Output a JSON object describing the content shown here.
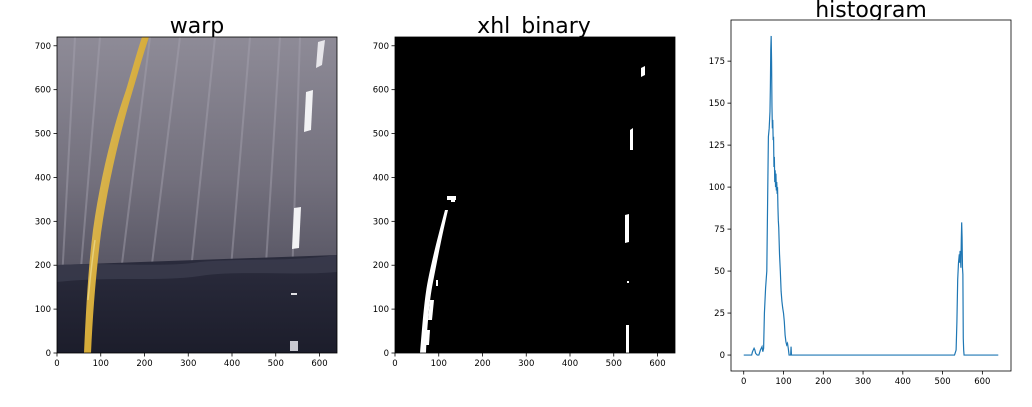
{
  "panels": [
    {
      "title": "warp",
      "image": "perspective-warped road photo: yellow left lane line curving up-right, white dashed right lane line, grey asphalt with dark shadow in lower part",
      "x_ticks": [
        "0",
        "100",
        "200",
        "300",
        "400",
        "500",
        "600"
      ],
      "y_ticks": [
        "0",
        "100",
        "200",
        "300",
        "400",
        "500",
        "600",
        "700"
      ],
      "xlim": [
        0,
        640
      ],
      "ylim": [
        720,
        0
      ]
    },
    {
      "title": "xhl_binary",
      "image": "binary lane mask: white lane pixels on black background",
      "x_ticks": [
        "0",
        "100",
        "200",
        "300",
        "400",
        "500",
        "600"
      ],
      "y_ticks": [
        "0",
        "100",
        "200",
        "300",
        "400",
        "500",
        "600",
        "700"
      ],
      "xlim": [
        0,
        640
      ],
      "ylim": [
        720,
        0
      ]
    }
  ],
  "chart_data": {
    "type": "line",
    "title": "histogram",
    "xlabel": "",
    "ylabel": "",
    "xlim": [
      -32,
      672
    ],
    "ylim": [
      -9.5,
      199.5
    ],
    "x_ticks": [
      "0",
      "100",
      "200",
      "300",
      "400",
      "500",
      "600"
    ],
    "y_ticks": [
      "0",
      "25",
      "50",
      "75",
      "100",
      "125",
      "150",
      "175"
    ],
    "color": "#1f77b4",
    "series": [
      {
        "x": [
          0,
          10,
          20,
          22,
          24,
          26,
          28,
          30,
          34,
          38,
          42,
          46,
          48,
          50,
          52,
          55,
          58,
          60,
          62,
          64,
          66,
          67,
          68,
          69,
          70,
          71,
          72,
          73,
          74,
          75,
          76,
          77,
          78,
          79,
          80,
          81,
          82,
          83,
          84,
          85,
          86,
          87,
          88,
          90,
          92,
          94,
          96,
          98,
          100,
          102,
          104,
          106,
          108,
          110,
          112,
          114,
          116,
          118,
          119,
          120,
          200,
          300,
          400,
          500,
          530,
          534,
          536,
          538,
          540,
          542,
          543,
          544,
          545,
          546,
          547,
          548,
          549,
          550,
          551,
          552,
          553,
          554,
          556,
          560,
          640
        ],
        "y": [
          0,
          0,
          0,
          2,
          3,
          4,
          3,
          1,
          0,
          0,
          3,
          5,
          2,
          4,
          25,
          40,
          50,
          90,
          130,
          135,
          145,
          160,
          182,
          190,
          175,
          148,
          135,
          140,
          128,
          130,
          112,
          118,
          103,
          110,
          100,
          108,
          98,
          103,
          96,
          100,
          88,
          80,
          76,
          60,
          50,
          38,
          32,
          28,
          25,
          20,
          12,
          8,
          6,
          7,
          4,
          0,
          0,
          0,
          5,
          0,
          0,
          0,
          0,
          0,
          0,
          3,
          20,
          45,
          55,
          60,
          55,
          62,
          58,
          52,
          68,
          79,
          70,
          52,
          48,
          10,
          3,
          0,
          0,
          0,
          0
        ]
      }
    ]
  }
}
